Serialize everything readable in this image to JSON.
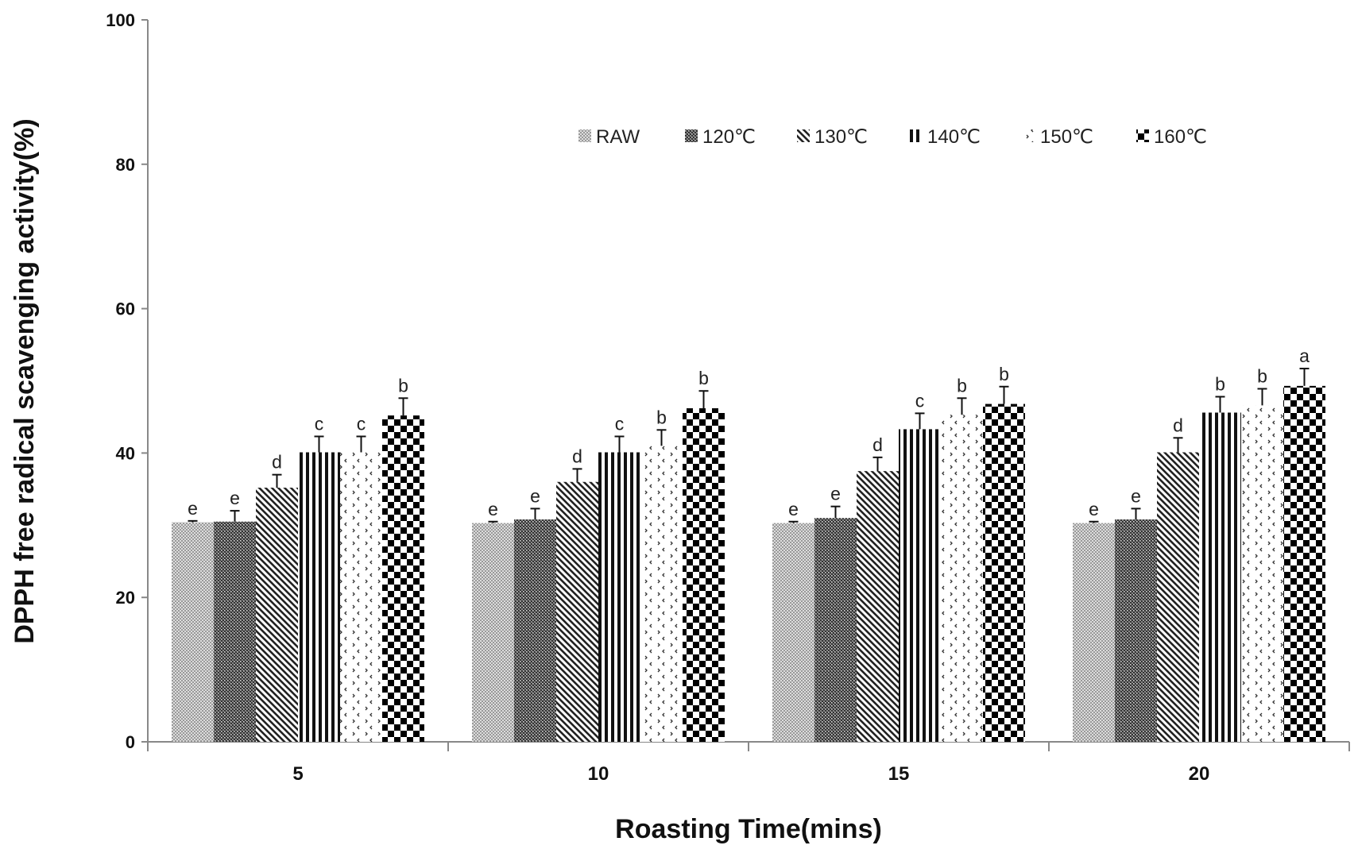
{
  "chart_data": {
    "type": "bar",
    "title": "",
    "xlabel": "Roasting Time(mins)",
    "ylabel": "DPPH free radical scavenging activity(%)",
    "ylim": [
      0,
      100
    ],
    "yticks": [
      "0",
      "20",
      "40",
      "60",
      "80",
      "100"
    ],
    "grid": false,
    "legend_position": "top-right",
    "categories": [
      "5",
      "10",
      "15",
      "20"
    ],
    "series": [
      {
        "name": "RAW",
        "pattern": "fine-dots",
        "values": [
          30.4,
          30.3,
          30.3,
          30.3
        ],
        "errors": [
          0.2,
          0.2,
          0.2,
          0.2
        ],
        "letters": [
          "e",
          "e",
          "e",
          "e"
        ]
      },
      {
        "name": "120℃",
        "pattern": "dense-dots",
        "values": [
          30.5,
          30.8,
          31.0,
          30.8
        ],
        "errors": [
          1.5,
          1.5,
          1.6,
          1.5
        ],
        "letters": [
          "e",
          "e",
          "e",
          "e"
        ]
      },
      {
        "name": "130℃",
        "pattern": "diagonal",
        "values": [
          35.2,
          36.0,
          37.5,
          40.1
        ],
        "errors": [
          1.8,
          1.8,
          1.9,
          2.0
        ],
        "letters": [
          "d",
          "d",
          "d",
          "d"
        ]
      },
      {
        "name": "140℃",
        "pattern": "vertical",
        "values": [
          40.1,
          40.1,
          43.3,
          45.6
        ],
        "errors": [
          2.2,
          2.2,
          2.2,
          2.2
        ],
        "letters": [
          "c",
          "c",
          "c",
          "b"
        ]
      },
      {
        "name": "150℃",
        "pattern": "chevrons",
        "values": [
          40.1,
          41.0,
          45.3,
          46.6
        ],
        "errors": [
          2.2,
          2.2,
          2.3,
          2.3
        ],
        "letters": [
          "c",
          "b",
          "b",
          "b"
        ]
      },
      {
        "name": "160℃",
        "pattern": "checker",
        "values": [
          45.2,
          46.2,
          46.8,
          49.3
        ],
        "errors": [
          2.4,
          2.4,
          2.4,
          2.4
        ],
        "letters": [
          "b",
          "b",
          "b",
          "a"
        ]
      }
    ]
  }
}
